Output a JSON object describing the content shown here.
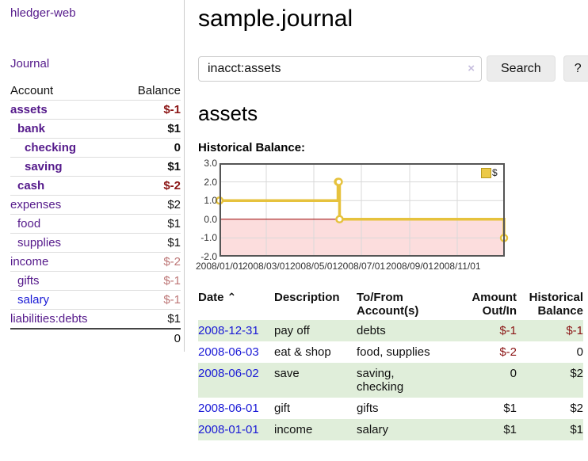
{
  "colors": {
    "purple_link": "#551a8b",
    "blue_link": "#1a1ad6",
    "negative_strong": "#8b1515",
    "negative_soft": "#bd7676",
    "row_stripe_green": "#e0eeda",
    "chart_line_gold": "#e6c23d",
    "chart_negative_region": "#fcdddd",
    "chart_zero_line": "#990000"
  },
  "sidebar": {
    "brand": "hledger-web",
    "journal_link": "Journal",
    "accounts_table": {
      "headers": {
        "account": "Account",
        "balance": "Balance"
      },
      "rows": [
        {
          "name": "assets",
          "balance": "$-1",
          "indent": 0,
          "bold": true,
          "balance_color": "negstrong",
          "link_color": "purple"
        },
        {
          "name": "bank",
          "balance": "$1",
          "indent": 1,
          "bold": true,
          "balance_color": "black",
          "link_color": "purple"
        },
        {
          "name": "checking",
          "balance": "0",
          "indent": 2,
          "bold": true,
          "balance_color": "black",
          "link_color": "purple"
        },
        {
          "name": "saving",
          "balance": "$1",
          "indent": 2,
          "bold": true,
          "balance_color": "black",
          "link_color": "purple"
        },
        {
          "name": "cash",
          "balance": "$-2",
          "indent": 1,
          "bold": true,
          "balance_color": "negstrong",
          "link_color": "purple"
        },
        {
          "name": "expenses",
          "balance": "$2",
          "indent": 0,
          "bold": false,
          "balance_color": "black",
          "link_color": "purple"
        },
        {
          "name": "food",
          "balance": "$1",
          "indent": 1,
          "bold": false,
          "balance_color": "black",
          "link_color": "purple"
        },
        {
          "name": "supplies",
          "balance": "$1",
          "indent": 1,
          "bold": false,
          "balance_color": "black",
          "link_color": "purple"
        },
        {
          "name": "income",
          "balance": "$-2",
          "indent": 0,
          "bold": false,
          "balance_color": "negsoft",
          "link_color": "purple"
        },
        {
          "name": "gifts",
          "balance": "$-1",
          "indent": 1,
          "bold": false,
          "balance_color": "negsoft",
          "link_color": "purple"
        },
        {
          "name": "salary",
          "balance": "$-1",
          "indent": 1,
          "bold": false,
          "balance_color": "negsoft",
          "link_color": "blue"
        },
        {
          "name": "liabilities:debts",
          "balance": "$1",
          "indent": 0,
          "bold": false,
          "balance_color": "black",
          "link_color": "purple"
        }
      ],
      "total": "0"
    }
  },
  "header": {
    "title": "sample.journal"
  },
  "search": {
    "value": "inacct:assets",
    "clear_icon": "×",
    "button_label": "Search",
    "help_label": "?"
  },
  "account_page": {
    "heading": "assets",
    "chart_label": "Historical Balance:"
  },
  "chart_data": {
    "type": "line",
    "step": true,
    "title": "Historical Balance",
    "x_domain": [
      "2008-01-01",
      "2009-01-01"
    ],
    "ylim": [
      -2,
      3
    ],
    "y_ticks": [
      {
        "value": 3,
        "label": "3.0"
      },
      {
        "value": 2,
        "label": "2.0"
      },
      {
        "value": 1,
        "label": "1.0"
      },
      {
        "value": 0,
        "label": "0.0"
      },
      {
        "value": -1,
        "label": "-1.0"
      },
      {
        "value": -2,
        "label": "-2.0"
      }
    ],
    "x_ticks": [
      {
        "date": "2008-01-01",
        "label": "2008/01/01"
      },
      {
        "date": "2008-03-01",
        "label": "2008/03/01"
      },
      {
        "date": "2008-05-01",
        "label": "2008/05/01"
      },
      {
        "date": "2008-07-01",
        "label": "2008/07/01"
      },
      {
        "date": "2008-09-01",
        "label": "2008/09/01"
      },
      {
        "date": "2008-11-01",
        "label": "2008/11/01"
      }
    ],
    "series": [
      {
        "name": "$",
        "color": "#e6c23d",
        "points": [
          [
            "2008-01-01",
            1
          ],
          [
            "2008-06-01",
            2
          ],
          [
            "2008-06-02",
            2
          ],
          [
            "2008-06-03",
            0
          ],
          [
            "2008-12-31",
            -1
          ]
        ]
      }
    ],
    "legend": {
      "position": "top-right",
      "label": "$"
    },
    "grid": true,
    "negative_region": true
  },
  "transactions": {
    "columns": [
      {
        "line1": "Date",
        "line2": "",
        "align": "left",
        "sort_icon": "⌃"
      },
      {
        "line1": "Description",
        "line2": "",
        "align": "left"
      },
      {
        "line1": "To/From",
        "line2": "Account(s)",
        "align": "left"
      },
      {
        "line1": "Amount",
        "line2": "Out/In",
        "align": "right"
      },
      {
        "line1": "Historical",
        "line2": "Balance",
        "align": "right"
      }
    ],
    "rows": [
      {
        "date": "2008-12-31",
        "description": "pay off",
        "accounts": "debts",
        "amount": "$-1",
        "amount_neg": true,
        "balance": "$-1",
        "balance_neg": true,
        "shaded": true
      },
      {
        "date": "2008-06-03",
        "description": "eat & shop",
        "accounts": "food, supplies",
        "amount": "$-2",
        "amount_neg": true,
        "balance": "0",
        "balance_neg": false,
        "shaded": false
      },
      {
        "date": "2008-06-02",
        "description": "save",
        "accounts": "saving, checking",
        "amount": "0",
        "amount_neg": false,
        "balance": "$2",
        "balance_neg": false,
        "shaded": true
      },
      {
        "date": "2008-06-01",
        "description": "gift",
        "accounts": "gifts",
        "amount": "$1",
        "amount_neg": false,
        "balance": "$2",
        "balance_neg": false,
        "shaded": false
      },
      {
        "date": "2008-01-01",
        "description": "income",
        "accounts": "salary",
        "amount": "$1",
        "amount_neg": false,
        "balance": "$1",
        "balance_neg": false,
        "shaded": true
      }
    ]
  }
}
